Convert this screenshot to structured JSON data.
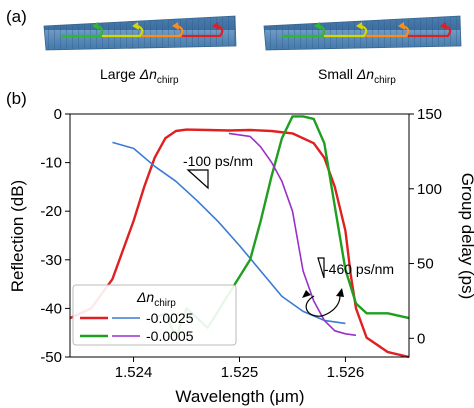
{
  "panel_a": {
    "label": "(a)",
    "left_caption": {
      "prefix": "Large ",
      "symbol": "Δn",
      "sub": "chirp"
    },
    "right_caption": {
      "prefix": "Small ",
      "symbol": "Δn",
      "sub": "chirp"
    },
    "arrow_colors": [
      "#2db82d",
      "#d6d600",
      "#ff8c1a",
      "#e02020"
    ]
  },
  "chart_data": {
    "type": "line",
    "panel_label": "(b)",
    "xlabel": "Wavelength (μm)",
    "ylabel_left": "Reflection (dB)",
    "ylabel_right": "Group delay (ps)",
    "xlim": [
      1.5234,
      1.5266
    ],
    "ylim_left": [
      -50,
      0
    ],
    "ylim_right": [
      -12.5,
      150
    ],
    "xticks": [
      "1.524",
      "1.525",
      "1.526"
    ],
    "xtick_values": [
      1.524,
      1.525,
      1.526
    ],
    "yticks_left": [
      "0",
      "-10",
      "-20",
      "-30",
      "-40",
      "-50"
    ],
    "ytick_values_left": [
      0,
      -10,
      -20,
      -30,
      -40,
      -50
    ],
    "yticks_right": [
      "0",
      "50",
      "100",
      "150"
    ],
    "ytick_values_right": [
      0,
      50,
      100,
      150
    ],
    "grid": false,
    "legend_title": {
      "symbol": "Δn",
      "sub": "chirp"
    },
    "legend_placement": "lower-left",
    "legend_rows": [
      {
        "label": "-0.0025",
        "reflection_color": "#e02020",
        "delay_color": "#3a7bd5"
      },
      {
        "label": "-0.0005",
        "reflection_color": "#1f9e1f",
        "delay_color": "#9b30c8"
      }
    ],
    "annotations": [
      {
        "text": "-100 ps/nm"
      },
      {
        "text": "-460 ps/nm"
      }
    ],
    "series": [
      {
        "name": "-0.0025",
        "quantity": "Reflection (dB)",
        "axis": "left",
        "color": "#e02020",
        "x": [
          1.5234,
          1.5236,
          1.5238,
          1.524,
          1.5241,
          1.5242,
          1.5243,
          1.5244,
          1.5245,
          1.5247,
          1.5249,
          1.5251,
          1.5253,
          1.5255,
          1.5257,
          1.5258,
          1.5259,
          1.526,
          1.52605,
          1.5261,
          1.5262,
          1.5264,
          1.5266
        ],
        "y": [
          -42,
          -40,
          -34,
          -22,
          -15,
          -9,
          -5,
          -3.5,
          -3.2,
          -3.3,
          -3.4,
          -3.3,
          -3.5,
          -4,
          -6,
          -9,
          -15,
          -24,
          -33,
          -40,
          -46,
          -49,
          -50
        ]
      },
      {
        "name": "-0.0025",
        "quantity": "Group delay (ps)",
        "axis": "right",
        "color": "#3a7bd5",
        "x": [
          1.5238,
          1.524,
          1.5242,
          1.5244,
          1.5246,
          1.5248,
          1.525,
          1.5252,
          1.5254,
          1.5256,
          1.5258,
          1.526
        ],
        "y": [
          131,
          127,
          115,
          105,
          92,
          78,
          62,
          45,
          28,
          18,
          12,
          10
        ]
      },
      {
        "name": "-0.0005",
        "quantity": "Reflection (dB)",
        "axis": "left",
        "color": "#1f9e1f",
        "x": [
          1.5242,
          1.5243,
          1.5244,
          1.5245,
          1.5247,
          1.5249,
          1.5251,
          1.5252,
          1.5253,
          1.5254,
          1.5255,
          1.5256,
          1.5257,
          1.5258,
          1.5259,
          1.526,
          1.5261,
          1.5262,
          1.5264,
          1.5266
        ],
        "y": [
          -42,
          -41,
          -46,
          -40,
          -44,
          -37,
          -30,
          -22,
          -13,
          -5,
          -0.5,
          -0.5,
          -1,
          -6,
          -19,
          -32,
          -39,
          -41,
          -41,
          -42
        ]
      },
      {
        "name": "-0.0005",
        "quantity": "Group delay (ps)",
        "axis": "right",
        "color": "#9b30c8",
        "x": [
          1.5249,
          1.5251,
          1.5252,
          1.5253,
          1.5254,
          1.5255,
          1.52555,
          1.5256,
          1.5257,
          1.5258,
          1.5259,
          1.526,
          1.5261
        ],
        "y": [
          137,
          135,
          128,
          118,
          105,
          85,
          65,
          45,
          25,
          12,
          5,
          3,
          2
        ]
      }
    ]
  }
}
